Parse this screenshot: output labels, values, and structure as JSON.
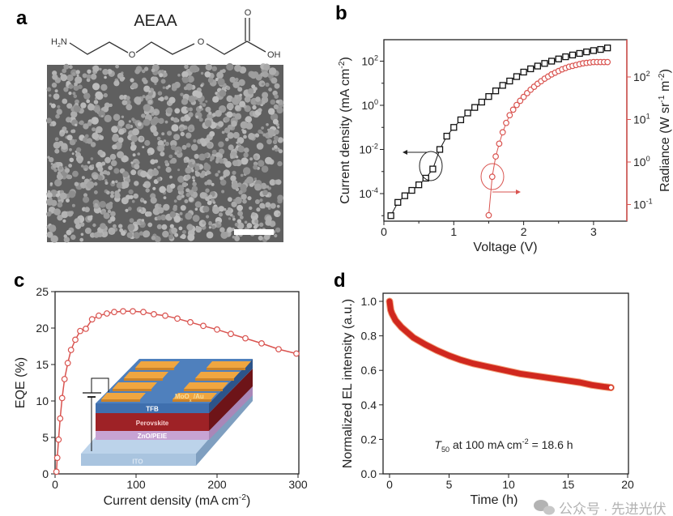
{
  "panels": {
    "a": "a",
    "b": "b",
    "c": "c",
    "d": "d"
  },
  "panel_a": {
    "molecule_name": "AEAA",
    "atom_labels": {
      "amine": "H2N",
      "amine_base": "H",
      "amine_sub": "2",
      "amine_end": "N",
      "ether_o": "O",
      "carbonyl_o": "O",
      "hydroxyl": "OH"
    },
    "image": "SEM micrograph of grains with white scale bar"
  },
  "chart_data": [
    {
      "panel": "b",
      "type": "scatter",
      "xlabel": "Voltage (V)",
      "xlim": [
        0,
        3.5
      ],
      "xticks": [
        0,
        1,
        2,
        3
      ],
      "ylabel": {
        "text": "Current density (mA cm",
        "sup": "-2",
        "end": ")"
      },
      "yscale": "log",
      "ylim": [
        5e-06,
        1000
      ],
      "yticks_exp": [
        -4,
        -2,
        0,
        2
      ],
      "y2label": {
        "text": "Radiance (W sr",
        "sup1": "-1",
        "mid": " m",
        "sup2": "-2",
        "end": ")"
      },
      "y2scale": "log",
      "y2lim": [
        0.04,
        700
      ],
      "y2ticks_exp": [
        -1,
        0,
        1,
        2
      ],
      "series": [
        {
          "axis": "left",
          "marker": "open-square",
          "color": "#111111",
          "x": [
            0.1,
            0.2,
            0.3,
            0.4,
            0.5,
            0.6,
            0.7,
            0.8,
            0.9,
            1.0,
            1.1,
            1.2,
            1.3,
            1.4,
            1.5,
            1.6,
            1.7,
            1.8,
            1.9,
            2.0,
            2.1,
            2.2,
            2.3,
            2.4,
            2.5,
            2.6,
            2.7,
            2.8,
            2.9,
            3.0,
            3.1,
            3.2
          ],
          "y": [
            1e-05,
            4e-05,
            8e-05,
            0.00014,
            0.00025,
            0.0005,
            0.0013,
            0.01,
            0.04,
            0.1,
            0.22,
            0.45,
            0.8,
            1.4,
            2.5,
            4.5,
            8,
            12.6,
            20,
            32,
            45,
            60,
            79,
            100,
            126,
            158,
            190,
            224,
            263,
            302,
            339,
            398
          ]
        },
        {
          "axis": "right",
          "marker": "open-circle",
          "color": "#d9534f",
          "x": [
            1.5,
            1.55,
            1.6,
            1.65,
            1.7,
            1.75,
            1.8,
            1.85,
            1.9,
            1.95,
            2.0,
            2.05,
            2.1,
            2.15,
            2.2,
            2.25,
            2.3,
            2.35,
            2.4,
            2.45,
            2.5,
            2.55,
            2.6,
            2.65,
            2.7,
            2.75,
            2.8,
            2.85,
            2.9,
            2.95,
            3.0,
            3.05,
            3.1,
            3.15,
            3.2
          ],
          "y": [
            0.056,
            0.45,
            1.35,
            2.7,
            5.0,
            8.3,
            12.6,
            17,
            21.9,
            27.5,
            33.9,
            41.7,
            50.1,
            58.9,
            69.2,
            79.4,
            91.2,
            102,
            115,
            126,
            138,
            151,
            162,
            174,
            182,
            191,
            200,
            209,
            214,
            219,
            224,
            224,
            224,
            224,
            224
          ]
        }
      ],
      "annotations": [
        "ellipse + arrow pointing left (current density axis)",
        "ellipse + arrow pointing right (radiance axis)"
      ],
      "grid": false
    },
    {
      "panel": "c",
      "type": "line",
      "xlabel": {
        "text": "Current density (mA cm",
        "sup": "-2",
        "end": ")"
      },
      "ylabel": "EQE (%)",
      "xlim": [
        0,
        300
      ],
      "ylim": [
        0,
        25
      ],
      "xticks": [
        0,
        100,
        200,
        300
      ],
      "yticks": [
        0,
        5,
        10,
        15,
        20,
        25
      ],
      "color": "#d9534f",
      "marker": "open-circle",
      "x": [
        1.7,
        2.7,
        4.3,
        6.3,
        8.7,
        11.7,
        15.7,
        19.7,
        25,
        31,
        38,
        45.7,
        54,
        64,
        73,
        84,
        96,
        109,
        122,
        136,
        151,
        167,
        183,
        200,
        217,
        235,
        255,
        276,
        298
      ],
      "y": [
        0.3,
        2.2,
        4.7,
        7.6,
        10.4,
        13,
        15.2,
        17,
        18.4,
        19.6,
        19.9,
        21.2,
        21.7,
        22,
        22.2,
        22.3,
        22.3,
        22.2,
        21.9,
        21.7,
        21.3,
        20.8,
        20.3,
        19.8,
        19.2,
        18.6,
        17.9,
        17.1,
        16.5
      ],
      "inset_layers": [
        "MoO",
        "x",
        " /Au",
        "TFB",
        "Perovskite",
        "ZnO/PEIE",
        "ITO"
      ],
      "inset_colors": {
        "electrode": "#f0a640",
        "tfb": "#3f6fae",
        "perovskite": "#9e2226",
        "zno": "#c7a3d3",
        "ito": "#a9c4df"
      },
      "grid": false
    },
    {
      "panel": "d",
      "type": "line",
      "xlabel": "Time (h)",
      "ylabel": "Normalized EL intensity (a.u.)",
      "xlim": [
        -0.4,
        20
      ],
      "ylim": [
        0,
        1.05
      ],
      "xticks": [
        0,
        5,
        10,
        15,
        20
      ],
      "yticks": [
        "0.0",
        "0.2",
        "0.4",
        "0.6",
        "0.8",
        "1.0"
      ],
      "color": "#d0281e",
      "x": [
        0,
        0.1,
        0.2,
        0.5,
        1,
        1.5,
        2,
        3,
        4,
        5,
        6,
        7,
        8,
        9,
        10,
        11,
        12,
        13,
        14,
        15,
        16,
        17,
        18,
        18.6
      ],
      "y": [
        1.0,
        0.95,
        0.93,
        0.89,
        0.85,
        0.82,
        0.79,
        0.75,
        0.715,
        0.685,
        0.66,
        0.64,
        0.625,
        0.61,
        0.595,
        0.58,
        0.57,
        0.56,
        0.55,
        0.54,
        0.53,
        0.515,
        0.505,
        0.5
      ],
      "annotation": {
        "T": "T",
        "sub": "50",
        "text": " at 100 mA cm",
        "sup": "-2",
        "end": " = 18.6 h"
      },
      "grid": false
    }
  ],
  "watermark": {
    "icon": "wechat-icon",
    "text1": "公众号",
    "dot": "·",
    "text2": "先进光伏"
  }
}
